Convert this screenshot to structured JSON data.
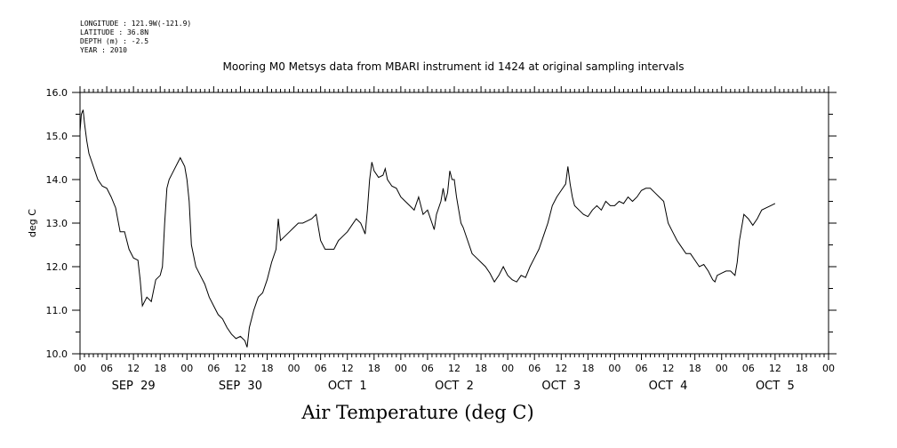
{
  "meta": {
    "longitude": "LONGITUDE : 121.9W(-121.9)",
    "latitude": "LATITUDE : 36.8N",
    "depth": "DEPTH (m) : -2.5",
    "year": "YEAR : 2010"
  },
  "chart_data": {
    "type": "line",
    "title": "Mooring M0 Metsys data from MBARI instrument id 1424 at original sampling intervals",
    "bottom_title": "Air Temperature (deg C)",
    "ylabel": "deg C",
    "ylim": [
      10.0,
      16.0
    ],
    "y_ticks": [
      "10.0",
      "11.0",
      "12.0",
      "13.0",
      "14.0",
      "15.0",
      "16.0"
    ],
    "x_unit": "hours since 2010-09-29 00:00",
    "xlim": [
      0,
      168
    ],
    "x_hour_labels": [
      "00",
      "06",
      "12",
      "18",
      "00",
      "06",
      "12",
      "18",
      "00",
      "06",
      "12",
      "18",
      "00",
      "06",
      "12",
      "18",
      "00",
      "06",
      "12",
      "18",
      "00",
      "06",
      "12",
      "18",
      "00",
      "06",
      "12",
      "18",
      "00"
    ],
    "x_day_labels": [
      "SEP 29",
      "SEP 30",
      "OCT 1",
      "OCT 2",
      "OCT 3",
      "OCT 4",
      "OCT 5"
    ],
    "grid": false,
    "series": [
      {
        "color": "#000000",
        "points": [
          [
            0,
            15.1
          ],
          [
            0.3,
            15.5
          ],
          [
            0.7,
            15.6
          ],
          [
            1,
            15.3
          ],
          [
            1.5,
            14.9
          ],
          [
            2,
            14.6
          ],
          [
            3,
            14.3
          ],
          [
            4,
            14.0
          ],
          [
            5,
            13.85
          ],
          [
            6,
            13.8
          ],
          [
            7,
            13.6
          ],
          [
            8,
            13.35
          ],
          [
            9,
            12.8
          ],
          [
            10,
            12.8
          ],
          [
            11,
            12.4
          ],
          [
            12,
            12.2
          ],
          [
            13,
            12.15
          ],
          [
            13.5,
            11.7
          ],
          [
            14,
            11.1
          ],
          [
            15,
            11.3
          ],
          [
            16,
            11.2
          ],
          [
            17,
            11.7
          ],
          [
            18,
            11.8
          ],
          [
            18.5,
            12.0
          ],
          [
            19,
            13.0
          ],
          [
            19.5,
            13.8
          ],
          [
            20,
            14.0
          ],
          [
            21,
            14.2
          ],
          [
            22,
            14.4
          ],
          [
            22.5,
            14.5
          ],
          [
            23,
            14.4
          ],
          [
            23.5,
            14.3
          ],
          [
            24,
            14.0
          ],
          [
            24.5,
            13.5
          ],
          [
            25,
            12.5
          ],
          [
            26,
            12.0
          ],
          [
            27,
            11.8
          ],
          [
            28,
            11.6
          ],
          [
            29,
            11.3
          ],
          [
            30,
            11.1
          ],
          [
            31,
            10.9
          ],
          [
            32,
            10.8
          ],
          [
            33,
            10.6
          ],
          [
            34,
            10.45
          ],
          [
            35,
            10.35
          ],
          [
            36,
            10.4
          ],
          [
            37,
            10.3
          ],
          [
            37.5,
            10.15
          ],
          [
            38,
            10.6
          ],
          [
            39,
            11.0
          ],
          [
            40,
            11.3
          ],
          [
            41,
            11.4
          ],
          [
            42,
            11.7
          ],
          [
            43,
            12.1
          ],
          [
            44,
            12.4
          ],
          [
            44.5,
            13.1
          ],
          [
            45,
            12.6
          ],
          [
            46,
            12.7
          ],
          [
            47,
            12.8
          ],
          [
            48,
            12.9
          ],
          [
            49,
            13.0
          ],
          [
            50,
            13.0
          ],
          [
            51,
            13.05
          ],
          [
            52,
            13.1
          ],
          [
            53,
            13.2
          ],
          [
            53.5,
            12.9
          ],
          [
            54,
            12.6
          ],
          [
            55,
            12.4
          ],
          [
            56,
            12.4
          ],
          [
            57,
            12.4
          ],
          [
            58,
            12.6
          ],
          [
            59,
            12.7
          ],
          [
            60,
            12.8
          ],
          [
            61,
            12.95
          ],
          [
            62,
            13.1
          ],
          [
            63,
            13.0
          ],
          [
            64,
            12.75
          ],
          [
            64.5,
            13.3
          ],
          [
            65,
            14.0
          ],
          [
            65.5,
            14.4
          ],
          [
            66,
            14.2
          ],
          [
            67,
            14.05
          ],
          [
            68,
            14.1
          ],
          [
            68.5,
            14.25
          ],
          [
            69,
            14.0
          ],
          [
            70,
            13.85
          ],
          [
            71,
            13.8
          ],
          [
            72,
            13.6
          ],
          [
            73,
            13.5
          ],
          [
            74,
            13.4
          ],
          [
            75,
            13.3
          ],
          [
            76,
            13.6
          ],
          [
            77,
            13.2
          ],
          [
            78,
            13.3
          ],
          [
            79,
            13.0
          ],
          [
            79.5,
            12.85
          ],
          [
            80,
            13.2
          ],
          [
            81,
            13.5
          ],
          [
            81.5,
            13.8
          ],
          [
            82,
            13.5
          ],
          [
            82.5,
            13.7
          ],
          [
            83,
            14.2
          ],
          [
            83.5,
            14.0
          ],
          [
            84,
            14.0
          ],
          [
            84.5,
            13.6
          ],
          [
            85,
            13.3
          ],
          [
            85.5,
            13.0
          ],
          [
            86,
            12.9
          ],
          [
            87,
            12.6
          ],
          [
            88,
            12.3
          ],
          [
            89,
            12.2
          ],
          [
            90,
            12.1
          ],
          [
            91,
            12.0
          ],
          [
            92,
            11.85
          ],
          [
            93,
            11.65
          ],
          [
            94,
            11.8
          ],
          [
            95,
            12.0
          ],
          [
            96,
            11.8
          ],
          [
            97,
            11.7
          ],
          [
            98,
            11.65
          ],
          [
            99,
            11.8
          ],
          [
            100,
            11.75
          ],
          [
            101,
            12.0
          ],
          [
            102,
            12.2
          ],
          [
            103,
            12.4
          ],
          [
            104,
            12.7
          ],
          [
            105,
            13.0
          ],
          [
            106,
            13.4
          ],
          [
            107,
            13.6
          ],
          [
            108,
            13.75
          ],
          [
            109,
            13.9
          ],
          [
            109.5,
            14.3
          ],
          [
            110,
            13.9
          ],
          [
            110.5,
            13.6
          ],
          [
            111,
            13.4
          ],
          [
            112,
            13.3
          ],
          [
            113,
            13.2
          ],
          [
            114,
            13.15
          ],
          [
            115,
            13.3
          ],
          [
            116,
            13.4
          ],
          [
            117,
            13.3
          ],
          [
            118,
            13.5
          ],
          [
            119,
            13.4
          ],
          [
            120,
            13.4
          ],
          [
            121,
            13.5
          ],
          [
            122,
            13.45
          ],
          [
            123,
            13.6
          ],
          [
            124,
            13.5
          ],
          [
            125,
            13.6
          ],
          [
            126,
            13.75
          ],
          [
            127,
            13.8
          ],
          [
            128,
            13.8
          ],
          [
            129,
            13.7
          ],
          [
            130,
            13.6
          ],
          [
            131,
            13.5
          ],
          [
            132,
            13.0
          ],
          [
            133,
            12.8
          ],
          [
            134,
            12.6
          ],
          [
            135,
            12.45
          ],
          [
            136,
            12.3
          ],
          [
            137,
            12.3
          ],
          [
            138,
            12.15
          ],
          [
            139,
            12.0
          ],
          [
            140,
            12.05
          ],
          [
            141,
            11.9
          ],
          [
            142,
            11.7
          ],
          [
            142.5,
            11.65
          ],
          [
            143,
            11.8
          ],
          [
            144,
            11.85
          ],
          [
            145,
            11.9
          ],
          [
            146,
            11.9
          ],
          [
            147,
            11.8
          ],
          [
            147.5,
            12.1
          ],
          [
            148,
            12.6
          ],
          [
            149,
            13.2
          ],
          [
            150,
            13.1
          ],
          [
            151,
            12.95
          ],
          [
            152,
            13.1
          ],
          [
            153,
            13.3
          ],
          [
            154,
            13.35
          ],
          [
            155,
            13.4
          ],
          [
            156,
            13.45
          ]
        ]
      }
    ]
  }
}
